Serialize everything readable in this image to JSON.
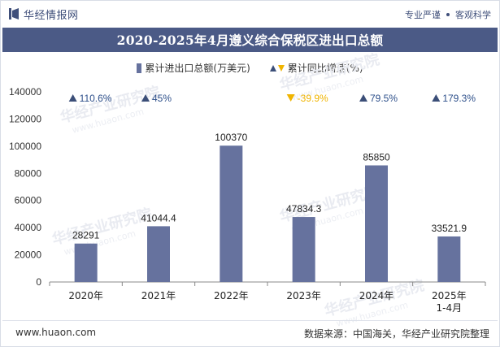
{
  "header": {
    "brand_name": "华经情报网",
    "slogan_left": "专业严谨",
    "slogan_right": "客观科学"
  },
  "title": "2020-2025年4月遵义综合保税区进出口总额",
  "legend": {
    "bar_label": "累计进出口总额(万美元)",
    "growth_label": "累计同比增速(%)"
  },
  "watermark": "华经产业研究院",
  "watermark_url": "www.huaon.com",
  "colors": {
    "bar": "#66729e",
    "up_arrow": "#3b4e78",
    "down_arrow": "#f0b400",
    "title_bg": "#4b5a86"
  },
  "chart_data": {
    "type": "bar",
    "title": "2020-2025年4月遵义综合保税区进出口总额",
    "categories": [
      "2020年",
      "2021年",
      "2022年",
      "2023年",
      "2024年",
      "2025年\n1-4月"
    ],
    "series": [
      {
        "name": "累计进出口总额(万美元)",
        "values": [
          28291,
          41044.4,
          100370,
          47834.3,
          85850,
          33521.9
        ]
      }
    ],
    "value_labels": [
      "28291",
      "41044.4",
      "100370",
      "47834.3",
      "85850",
      "33521.9"
    ],
    "growth": [
      {
        "value": 110.6,
        "label": "110.6%",
        "direction": "up"
      },
      {
        "value": 45,
        "label": "45%",
        "direction": "up"
      },
      {
        "value": null,
        "label": "",
        "direction": "none"
      },
      {
        "value": -39.9,
        "label": "-39.9%",
        "direction": "down"
      },
      {
        "value": 79.5,
        "label": "79.5%",
        "direction": "up"
      },
      {
        "value": 179.3,
        "label": "179.3%",
        "direction": "up"
      }
    ],
    "yticks": [
      0,
      20000,
      40000,
      60000,
      80000,
      100000,
      120000,
      140000
    ],
    "ylim": [
      0,
      140000
    ],
    "xlabel": "",
    "ylabel": ""
  },
  "footer": {
    "website": "www.huaon.com",
    "source": "数据来源：中国海关，华经产业研究院整理"
  }
}
